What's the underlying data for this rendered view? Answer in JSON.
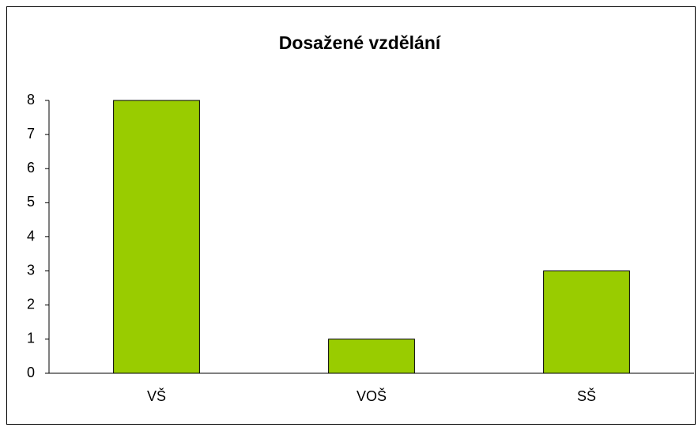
{
  "chart_data": {
    "type": "bar",
    "title": "Dosažené vzdělání",
    "categories": [
      "VŠ",
      "VOŠ",
      "SŠ"
    ],
    "values": [
      8,
      1,
      3
    ],
    "color": "#99cc00",
    "ylim": [
      0,
      8
    ],
    "yticks": [
      0,
      1,
      2,
      3,
      4,
      5,
      6,
      7,
      8
    ],
    "grid": false
  }
}
